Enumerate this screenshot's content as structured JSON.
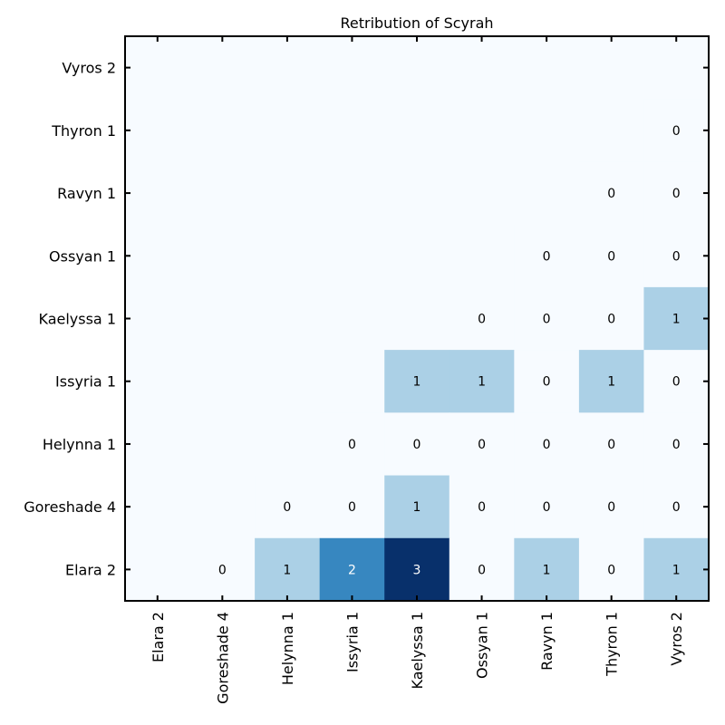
{
  "chart_data": {
    "type": "heatmap",
    "title": "Retribution of Scyrah",
    "x_labels": [
      "Elara 2",
      "Goreshade 4",
      "Helynna 1",
      "Issyria 1",
      "Kaelyssa 1",
      "Ossyan 1",
      "Ravyn 1",
      "Thyron 1",
      "Vyros 2"
    ],
    "y_labels": [
      "Vyros 2",
      "Thyron 1",
      "Ravyn 1",
      "Ossyan 1",
      "Kaelyssa 1",
      "Issyria 1",
      "Helynna 1",
      "Goreshade 4",
      "Elara 2"
    ],
    "values": [
      [
        null,
        null,
        null,
        null,
        null,
        null,
        null,
        null,
        null
      ],
      [
        null,
        null,
        null,
        null,
        null,
        null,
        null,
        null,
        0
      ],
      [
        null,
        null,
        null,
        null,
        null,
        null,
        null,
        0,
        0
      ],
      [
        null,
        null,
        null,
        null,
        null,
        null,
        0,
        0,
        0
      ],
      [
        null,
        null,
        null,
        null,
        null,
        0,
        0,
        0,
        1
      ],
      [
        null,
        null,
        null,
        null,
        1,
        1,
        0,
        1,
        0
      ],
      [
        null,
        null,
        null,
        0,
        0,
        0,
        0,
        0,
        0
      ],
      [
        null,
        null,
        0,
        0,
        1,
        0,
        0,
        0,
        0
      ],
      [
        null,
        0,
        1,
        2,
        3,
        0,
        1,
        0,
        1
      ]
    ],
    "color_scale": {
      "0": "#f7fbff",
      "1": "#abd0e6",
      "2": "#3787c0",
      "3": "#08306b"
    },
    "background_color": "#f7fbff",
    "label_colors": {
      "dark": "#000000",
      "light": "#ffffff"
    }
  }
}
